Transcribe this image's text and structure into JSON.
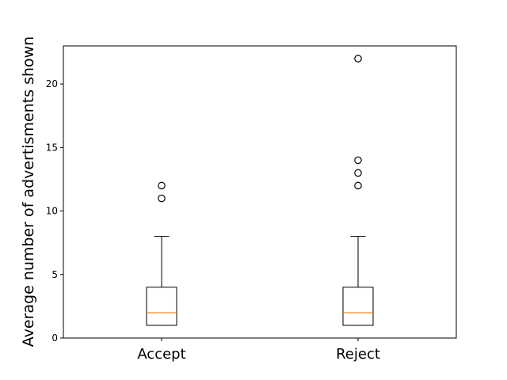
{
  "chart_data": {
    "type": "box",
    "title": "",
    "xlabel": "",
    "ylabel": "Average number of advertisments shown",
    "ylim": [
      0,
      23
    ],
    "yticks": [
      0,
      5,
      10,
      15,
      20
    ],
    "grid": false,
    "categories": [
      "Accept",
      "Reject"
    ],
    "boxes": [
      {
        "category": "Accept",
        "whisker_low": 1,
        "q1": 1,
        "median": 2,
        "q3": 4,
        "whisker_high": 8,
        "outliers": [
          11,
          12
        ]
      },
      {
        "category": "Reject",
        "whisker_low": 1,
        "q1": 1,
        "median": 2,
        "q3": 4,
        "whisker_high": 8,
        "outliers": [
          12,
          13,
          14,
          22
        ]
      }
    ],
    "colors": {
      "box": "#000000",
      "median": "#ff7f0e",
      "outlier": "#000000"
    }
  }
}
